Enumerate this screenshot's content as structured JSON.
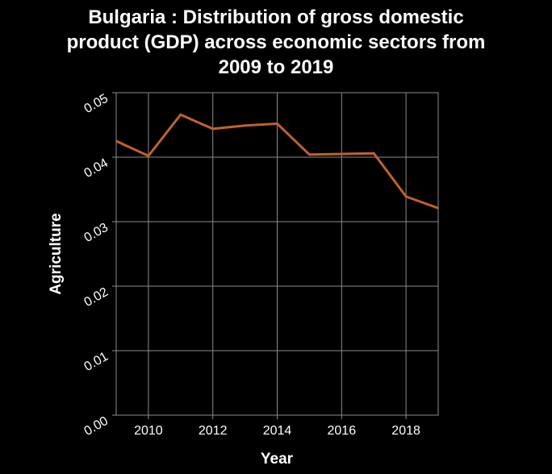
{
  "chart_data": {
    "type": "line",
    "title_lines": [
      "Bulgaria : Distribution of gross domestic",
      "product (GDP) across economic sectors from",
      "2009 to 2019"
    ],
    "xlabel": "Year",
    "ylabel": "Agriculture",
    "xlim": [
      2009,
      2019
    ],
    "ylim": [
      0,
      0.05
    ],
    "x_ticks": [
      2010,
      2012,
      2014,
      2016,
      2018
    ],
    "y_ticks": [
      "0.00",
      "0.01",
      "0.02",
      "0.03",
      "0.04",
      "0.05"
    ],
    "grid": true,
    "series": [
      {
        "x": [
          2009,
          2010,
          2011,
          2012,
          2013,
          2014,
          2015,
          2016,
          2017,
          2018,
          2019
        ],
        "values": [
          0.0425,
          0.0402,
          0.0466,
          0.0444,
          0.0449,
          0.0452,
          0.0404,
          0.0405,
          0.0406,
          0.0339,
          0.0321
        ]
      }
    ],
    "colors": {
      "background": "#000000",
      "line": "#c0622a",
      "grid": "#8c8c8c",
      "text": "#ffffff"
    }
  }
}
